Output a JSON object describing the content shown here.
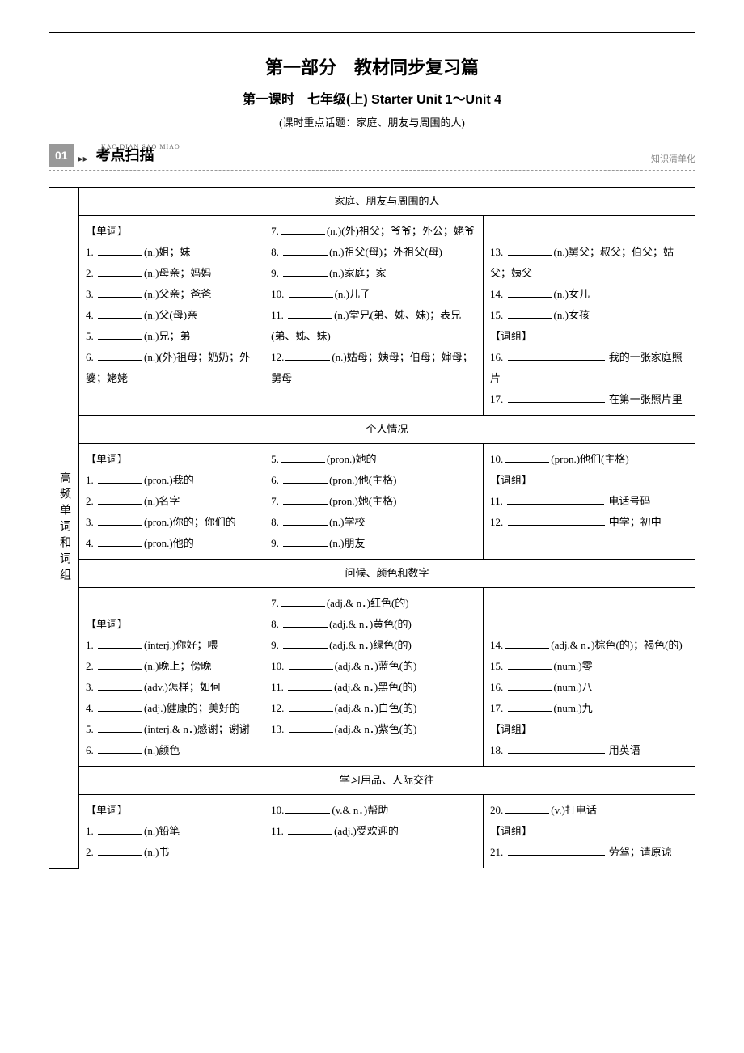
{
  "page": {
    "main_title": "第一部分　教材同步复习篇",
    "sub_title": "第一课时　七年级(上) Starter Unit 1～Unit 4",
    "sub_note": "(课时重点话题：家庭、朋友与周围的人)",
    "section_num": "01",
    "pinyin": "KAO DIAN SAO MIAO",
    "section_title": "考点扫描",
    "right_note": "知识清单化",
    "row_label": "高频单词和词组"
  },
  "topic1": {
    "header": "家庭、朋友与周围的人",
    "word_label": "【单词】",
    "phrase_label": "【词组】",
    "col1": [
      {
        "n": "1.",
        "pos": "(n.)姐；妹"
      },
      {
        "n": "2.",
        "pos": "(n.)母亲；妈妈"
      },
      {
        "n": "3.",
        "pos": "(n.)父亲；爸爸"
      },
      {
        "n": "4.",
        "pos": "(n.)父(母)亲"
      },
      {
        "n": "5.",
        "pos": "(n.)兄；弟"
      },
      {
        "n": "6.",
        "pos": "(n.)(外)祖母；奶奶；外婆；姥姥"
      }
    ],
    "col2": [
      {
        "n": "7.",
        "pos": "(n.)(外)祖父；爷爷；外公；姥爷"
      },
      {
        "n": "8.",
        "pos": "(n.)祖父(母)；外祖父(母)"
      },
      {
        "n": "9.",
        "pos": "(n.)家庭；家"
      },
      {
        "n": "10.",
        "pos": "(n.)儿子"
      },
      {
        "n": "11.",
        "pos": "(n.)堂兄(弟、姊、妹)；表兄(弟、姊、妹)"
      },
      {
        "n": "12.",
        "pos": "(n.)姑母；姨母；伯母；婶母；舅母"
      }
    ],
    "col3": [
      {
        "n": "13.",
        "pos": "(n.)舅父；叔父；伯父；姑父；姨父"
      },
      {
        "n": "14.",
        "pos": "(n.)女儿"
      },
      {
        "n": "15.",
        "pos": "(n.)女孩"
      }
    ],
    "col3_phrases": [
      {
        "n": "16.",
        "txt": "我的一张家庭照片"
      },
      {
        "n": "17.",
        "txt": "在第一张照片里"
      }
    ]
  },
  "topic2": {
    "header": "个人情况",
    "word_label": "【单词】",
    "phrase_label": "【词组】",
    "col1": [
      {
        "n": "1.",
        "pos": "(pron.)我的"
      },
      {
        "n": "2.",
        "pos": "(n.)名字"
      },
      {
        "n": "3.",
        "pos": "(pron.)你的；你们的"
      },
      {
        "n": "4.",
        "pos": "(pron.)他的"
      }
    ],
    "col2": [
      {
        "n": "5.",
        "pos": "(pron.)她的"
      },
      {
        "n": "6.",
        "pos": "(pron.)他(主格)"
      },
      {
        "n": "7.",
        "pos": "(pron.)她(主格)"
      },
      {
        "n": "8.",
        "pos": "(n.)学校"
      },
      {
        "n": "9.",
        "pos": "(n.)朋友"
      }
    ],
    "col3": [
      {
        "n": "10.",
        "pos": "(pron.)他们(主格)"
      }
    ],
    "col3_phrases": [
      {
        "n": "11.",
        "txt": "电话号码"
      },
      {
        "n": "12.",
        "txt": "中学；初中"
      }
    ]
  },
  "topic3": {
    "header": "问候、颜色和数字",
    "word_label": "【单词】",
    "phrase_label": "【词组】",
    "col1": [
      {
        "n": "1.",
        "pos": "(interj.)你好；喂"
      },
      {
        "n": "2.",
        "pos": "(n.)晚上；傍晚"
      },
      {
        "n": "3.",
        "pos": "(adv.)怎样；如何"
      },
      {
        "n": "4.",
        "pos": "(adj.)健康的；美好的"
      },
      {
        "n": "5.",
        "pos": "(interj.& n．)感谢；谢谢"
      },
      {
        "n": "6.",
        "pos": "(n.)颜色"
      }
    ],
    "col2": [
      {
        "n": "7.",
        "pos": "(adj.& n．)红色(的)"
      },
      {
        "n": "8.",
        "pos": "(adj.& n．)黄色(的)"
      },
      {
        "n": "9.",
        "pos": "(adj.& n．)绿色(的)"
      },
      {
        "n": "10.",
        "pos": "(adj.& n．)蓝色(的)"
      },
      {
        "n": "11.",
        "pos": "(adj.& n．)黑色(的)"
      },
      {
        "n": "12.",
        "pos": "(adj.& n．)白色(的)"
      },
      {
        "n": "13.",
        "pos": "(adj.& n．)紫色(的)"
      }
    ],
    "col3": [
      {
        "n": "14.",
        "pos": "(adj.& n．)棕色(的)；褐色(的)"
      },
      {
        "n": "15.",
        "pos": "(num.)零"
      },
      {
        "n": "16.",
        "pos": "(num.)八"
      },
      {
        "n": "17.",
        "pos": "(num.)九"
      }
    ],
    "col3_phrases": [
      {
        "n": "18.",
        "txt": "用英语"
      }
    ]
  },
  "topic4": {
    "header": "学习用品、人际交往",
    "word_label": "【单词】",
    "phrase_label": "【词组】",
    "col1": [
      {
        "n": "1.",
        "pos": "(n.)铅笔"
      },
      {
        "n": "2.",
        "pos": "(n.)书"
      }
    ],
    "col2": [
      {
        "n": "10.",
        "pos": "(v.& n．)帮助"
      },
      {
        "n": "11.",
        "pos": "(adj.)受欢迎的"
      }
    ],
    "col3": [
      {
        "n": "20.",
        "pos": "(v.)打电话"
      }
    ],
    "col3_phrases": [
      {
        "n": "21.",
        "txt": "劳驾；请原谅"
      }
    ]
  }
}
